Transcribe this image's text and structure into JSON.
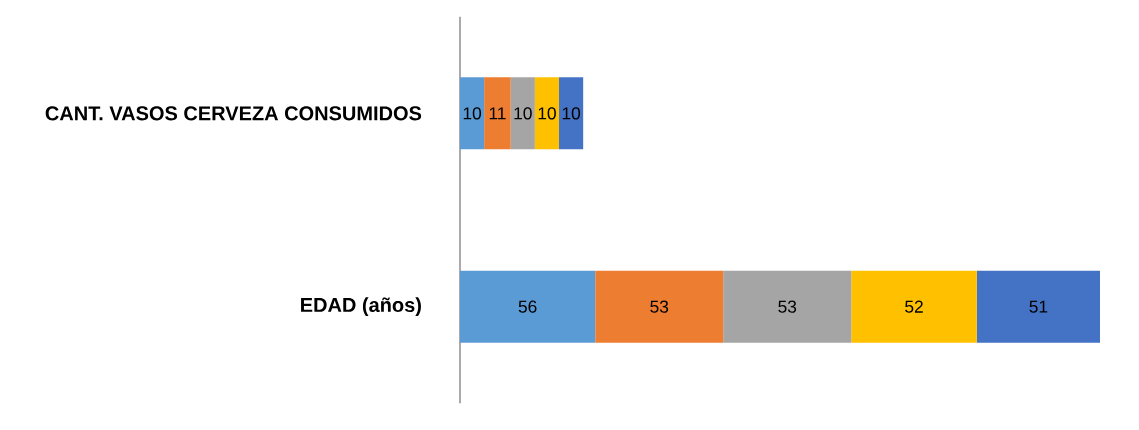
{
  "chart_data": {
    "type": "bar",
    "orientation": "horizontal",
    "stacked": true,
    "data_labels": true,
    "tick_labels": "y",
    "categories": [
      "CANT. VASOS CERVEZA CONSUMIDOS",
      "EDAD (años)"
    ],
    "series": [
      {
        "color": "#5b9bd5",
        "values": [
          10,
          56
        ]
      },
      {
        "color": "#ed7d31",
        "values": [
          11,
          53
        ]
      },
      {
        "color": "#a5a5a5",
        "values": [
          10,
          53
        ]
      },
      {
        "color": "#ffc000",
        "values": [
          10,
          52
        ]
      },
      {
        "color": "#4472c4",
        "values": [
          10,
          51
        ]
      }
    ]
  }
}
